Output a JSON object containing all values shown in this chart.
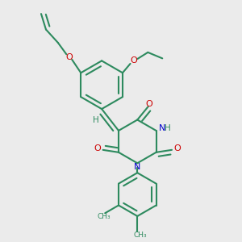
{
  "bg_color": "#ebebeb",
  "bond_color": "#2d8a5e",
  "oxygen_color": "#cc0000",
  "nitrogen_color": "#0000cc",
  "lw": 1.5,
  "fig_size": [
    3.0,
    3.0
  ],
  "dpi": 100,
  "xlim": [
    0,
    10
  ],
  "ylim": [
    0,
    10
  ]
}
